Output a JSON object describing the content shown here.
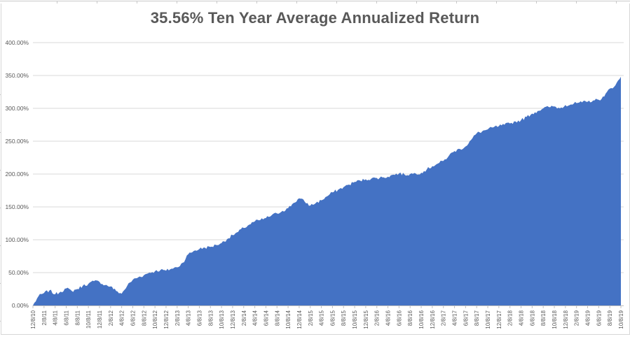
{
  "chart_data": {
    "type": "area",
    "title": "35.56% Ten Year Average Annualized Return",
    "x_start": "12/8/10",
    "x_end": "10/8/19",
    "x_tick_labels": [
      "12/8/10",
      "2/8/11",
      "4/8/11",
      "6/8/11",
      "8/8/11",
      "10/8/11",
      "12/8/11",
      "2/8/12",
      "4/8/12",
      "6/8/12",
      "8/8/12",
      "10/8/12",
      "12/8/12",
      "2/8/13",
      "4/8/13",
      "6/8/13",
      "8/8/13",
      "10/8/13",
      "12/8/13",
      "2/8/14",
      "4/8/14",
      "6/8/14",
      "8/8/14",
      "10/8/14",
      "12/8/14",
      "2/8/15",
      "4/8/15",
      "6/8/15",
      "8/8/15",
      "10/8/15",
      "12/8/15",
      "2/8/16",
      "4/8/16",
      "6/8/16",
      "8/8/16",
      "10/8/16",
      "12/8/16",
      "2/8/17",
      "4/8/17",
      "6/8/17",
      "8/8/17",
      "10/8/17",
      "12/8/17",
      "2/8/18",
      "4/8/18",
      "6/8/18",
      "8/8/18",
      "10/8/18",
      "12/8/18",
      "2/8/19",
      "4/8/19",
      "6/8/19",
      "8/8/19",
      "10/8/19"
    ],
    "y_tick_labels": [
      "400.00%",
      "350.00%",
      "300.00%",
      "250.00%",
      "200.00%",
      "150.00%",
      "100.00%",
      "50.00%",
      "0.00%"
    ],
    "ylim": [
      0,
      400
    ],
    "gridline_step_pct": 50,
    "values_interval": "monthly",
    "values_pct": [
      0,
      14,
      19,
      23,
      17,
      21,
      26,
      22,
      25,
      30,
      33,
      37,
      36,
      31,
      29,
      22,
      18,
      30,
      39,
      43,
      46,
      50,
      52,
      54,
      53,
      56,
      58,
      65,
      78,
      83,
      86,
      88,
      89,
      92,
      95,
      101,
      107,
      112,
      118,
      123,
      128,
      130,
      133,
      137,
      140,
      144,
      148,
      156,
      163,
      158,
      152,
      156,
      160,
      166,
      172,
      176,
      180,
      184,
      188,
      190,
      192,
      193,
      194,
      195,
      196,
      199,
      201,
      199,
      200,
      201,
      202,
      207,
      212,
      216,
      220,
      228,
      235,
      238,
      242,
      252,
      262,
      265,
      268,
      271,
      273,
      275,
      277,
      280,
      282,
      287,
      292,
      296,
      300,
      302,
      303,
      300,
      305,
      306,
      308,
      309,
      310,
      312,
      313,
      318,
      330,
      335,
      348
    ],
    "grid": true,
    "legend": "none",
    "fill_color": "#4472C4",
    "gridline_color": "#D9D9D9",
    "axis_line_color": "#BFBFBF",
    "axis_label_color": "#595959",
    "title_color": "#595959"
  }
}
